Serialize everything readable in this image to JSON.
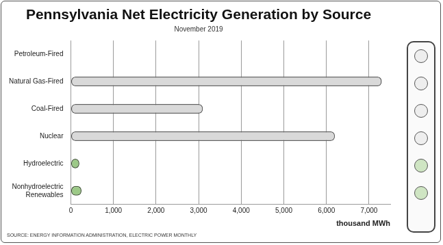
{
  "chart_data": {
    "type": "bar",
    "orientation": "horizontal",
    "title": "Pennsylvania Net Electricity Generation by Source",
    "subtitle": "November 2019",
    "x_label": "thousand MWh",
    "source": "SOURCE: ENERGY INFORMATION ADMINISTRATION, ELECTRIC POWER MONTHLY",
    "categories": [
      "Petroleum-Fired",
      "Natural Gas-Fired",
      "Coal-Fired",
      "Nuclear",
      "Hydroelectric",
      "Nonhydroelectric Renewables"
    ],
    "values": [
      10,
      7300,
      3100,
      6200,
      200,
      250
    ],
    "colors": [
      "#d9d9d9",
      "#d9d9d9",
      "#d9d9d9",
      "#d9d9d9",
      "#9cc987",
      "#9cc987"
    ],
    "xlim": [
      0,
      7500
    ],
    "xticks": [
      0,
      {
        "value": 1000,
        "label": "1,000"
      },
      {
        "value": 2000,
        "label": "2,000"
      },
      {
        "value": 3000,
        "label": "3,000"
      },
      {
        "value": 4000,
        "label": "4,000"
      },
      {
        "value": 5000,
        "label": "5,000"
      },
      {
        "value": 6000,
        "label": "6,000"
      },
      {
        "value": 7000,
        "label": "7,000"
      }
    ],
    "grid": true,
    "data_labels": false
  }
}
